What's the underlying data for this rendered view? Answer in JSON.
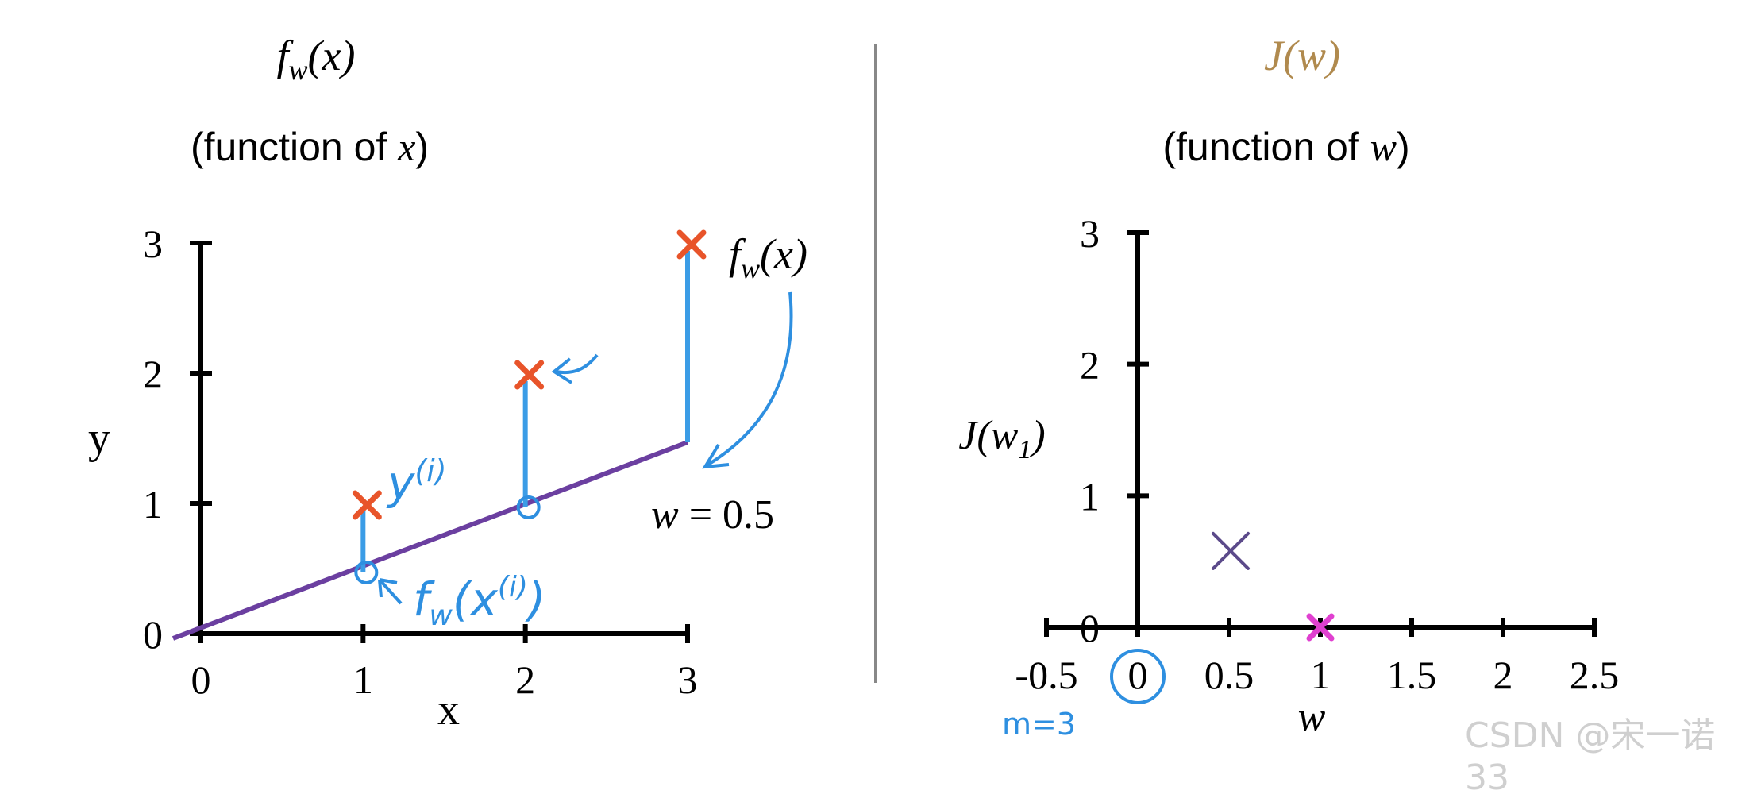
{
  "left_panel": {
    "title": "f_w(x)",
    "title_base": "f",
    "title_sub": "w",
    "title_arg": "(x)",
    "subtitle_prefix": "(function of ",
    "subtitle_var": "x",
    "subtitle_suffix": ")",
    "ylabel": "y",
    "xlabel": "x",
    "w_label": "w = 0.5",
    "annotation_fw": "f_w(x)",
    "annotation_fw_base": "f",
    "annotation_fw_sub": "w",
    "annotation_fw_arg": "(x)",
    "hand_y": "y(i)",
    "hand_y_base": "y",
    "hand_y_sup": "(i)",
    "hand_fx": "fw(x(i))",
    "hand_fx_base": "f",
    "hand_fx_sub": "w",
    "hand_fx_arg": "(x",
    "hand_fx_sup": "(i)",
    "hand_fx_close": ")"
  },
  "right_panel": {
    "title": "J(w)",
    "subtitle_prefix": "(function of ",
    "subtitle_var": "w",
    "subtitle_suffix": ")",
    "ylabel": "J(w1)",
    "ylabel_base": "J(w",
    "ylabel_sub": "1",
    "ylabel_close": ")",
    "xlabel": "w",
    "hand_m": "m=3"
  },
  "watermark": "CSDN @宋一诺33",
  "colors": {
    "data_marker": "#e8542a",
    "hypothesis_line": "#6b3fa0",
    "error_segment": "#3b9ce6",
    "handwriting": "#2e8fe0",
    "cost_point": "#5b4a8a",
    "highlight_point": "#e040d0",
    "title_J": "#b08a4e",
    "divider": "#888888"
  },
  "chart_data": [
    {
      "type": "scatter",
      "title": "f_w(x)",
      "xlabel": "x",
      "ylabel": "y",
      "xlim": [
        0,
        3
      ],
      "ylim": [
        0,
        3
      ],
      "x_ticks": [
        "0",
        "1",
        "2",
        "3"
      ],
      "y_ticks": [
        "0",
        "1",
        "2",
        "3"
      ],
      "points": [
        {
          "x": 1,
          "y": 1
        },
        {
          "x": 2,
          "y": 2
        },
        {
          "x": 3,
          "y": 3
        }
      ],
      "model": {
        "w": 0.5,
        "line": [
          [
            0,
            0
          ],
          [
            3,
            1.5
          ]
        ]
      },
      "predictions": [
        {
          "x": 1,
          "y": 0.5
        },
        {
          "x": 2,
          "y": 1.0
        }
      ],
      "grid": false
    },
    {
      "type": "scatter",
      "title": "J(w)",
      "xlabel": "w",
      "ylabel": "J(w1)",
      "xlim": [
        -0.5,
        2.5
      ],
      "ylim": [
        0,
        3
      ],
      "x_ticks": [
        "-0.5",
        "0",
        "0.5",
        "1",
        "1.5",
        "2",
        "2.5"
      ],
      "y_ticks": [
        "0",
        "1",
        "2",
        "3"
      ],
      "points": [
        {
          "w": 0.5,
          "J": 0.58,
          "marker": "x"
        },
        {
          "w": 1,
          "J": 0,
          "marker": "x-highlight"
        }
      ],
      "highlighted_tick": "0",
      "grid": false
    }
  ]
}
